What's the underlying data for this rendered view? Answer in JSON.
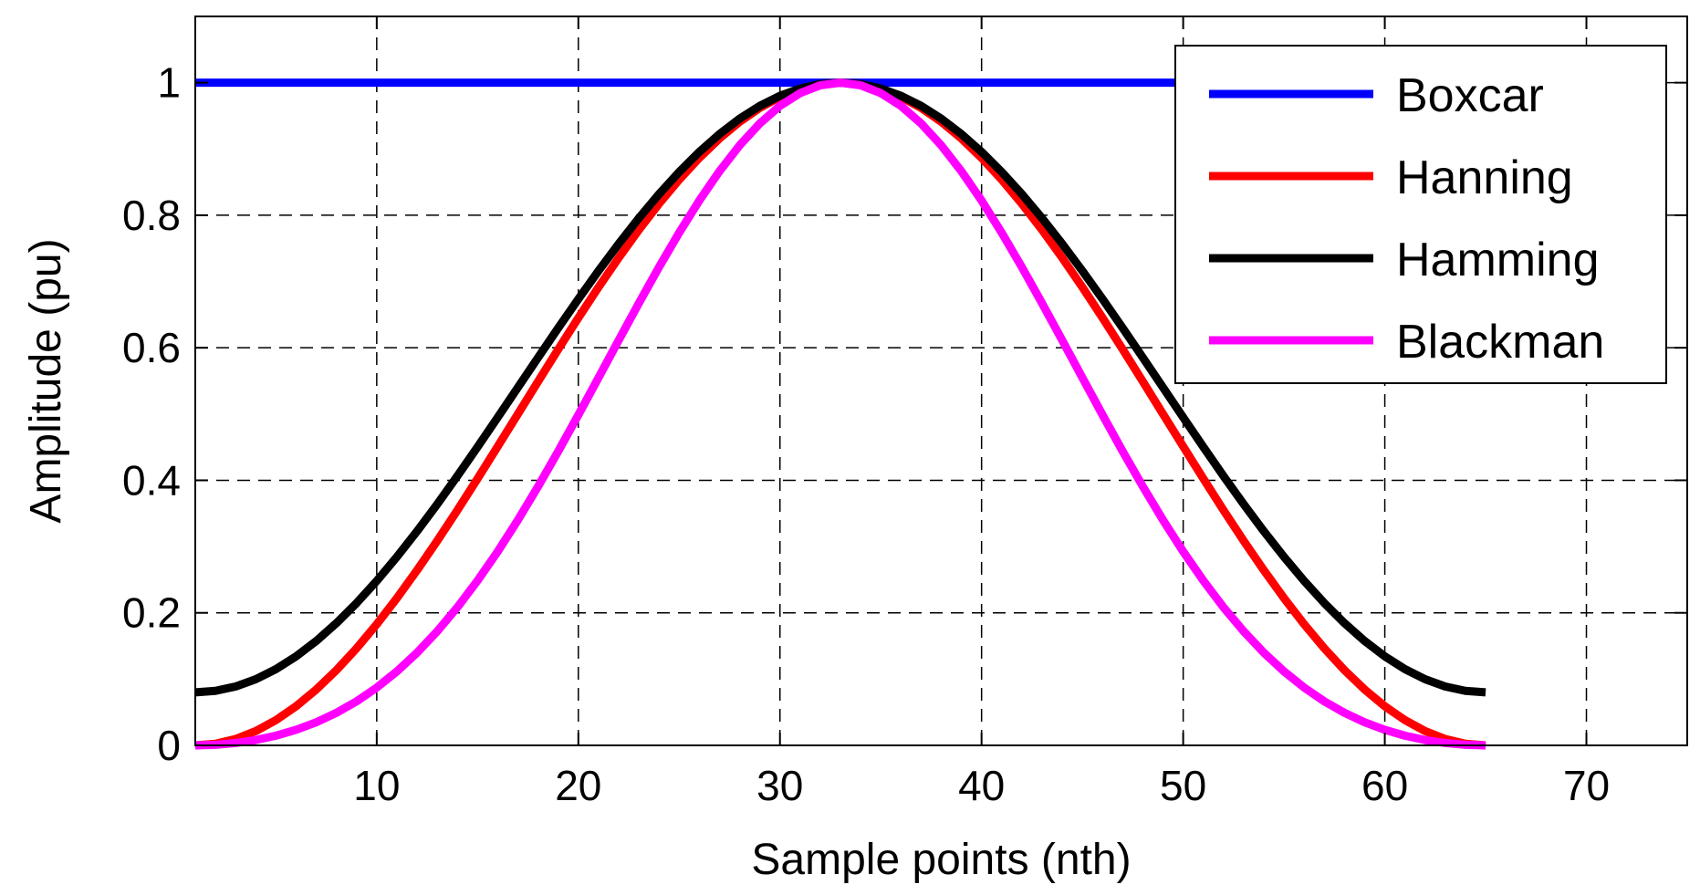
{
  "chart_data": {
    "type": "line",
    "title": "",
    "xlabel": "Sample points (nth)",
    "ylabel": "Amplitude (pu)",
    "xlim": [
      1,
      75
    ],
    "ylim": [
      0,
      1.1
    ],
    "grid": true,
    "legend_position": "top-right",
    "xticks": [
      10,
      20,
      30,
      40,
      50,
      60,
      70
    ],
    "yticks": [
      0,
      0.2,
      0.4,
      0.6,
      0.8,
      1
    ],
    "ytick_labels": [
      "0",
      "0.2",
      "0.4",
      "0.6",
      "0.8",
      "1"
    ],
    "x_start": 1,
    "x_end": 65,
    "series": [
      {
        "name": "Boxcar",
        "color": "#0000ff",
        "window": "boxcar"
      },
      {
        "name": "Hanning",
        "color": "#ff0000",
        "window": "hanning"
      },
      {
        "name": "Hamming",
        "color": "#000000",
        "window": "hamming"
      },
      {
        "name": "Blackman",
        "color": "#ff00ff",
        "window": "blackman"
      }
    ]
  }
}
